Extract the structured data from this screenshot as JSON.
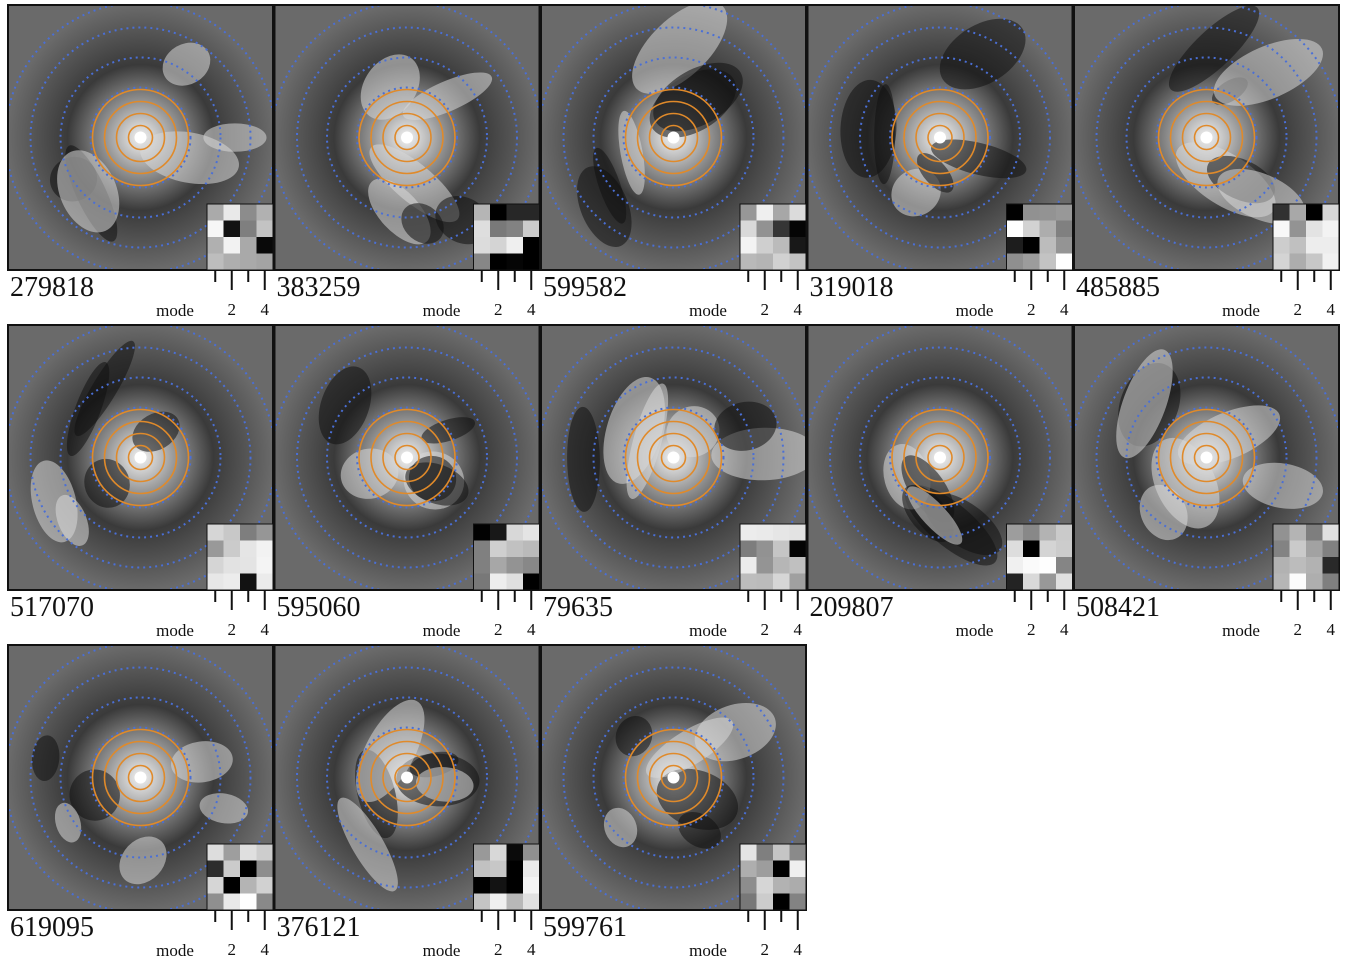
{
  "panels": [
    {
      "id": "279818",
      "axis_label": "mode",
      "tick_labels": [
        "2",
        "4"
      ]
    },
    {
      "id": "383259",
      "axis_label": "mode",
      "tick_labels": [
        "2",
        "4"
      ]
    },
    {
      "id": "599582",
      "axis_label": "mode",
      "tick_labels": [
        "2",
        "4"
      ]
    },
    {
      "id": "319018",
      "axis_label": "mode",
      "tick_labels": [
        "2",
        "4"
      ]
    },
    {
      "id": "485885",
      "axis_label": "mode",
      "tick_labels": [
        "2",
        "4"
      ]
    },
    {
      "id": "517070",
      "axis_label": "mode",
      "tick_labels": [
        "2",
        "4"
      ]
    },
    {
      "id": "595060",
      "axis_label": "mode",
      "tick_labels": [
        "2",
        "4"
      ]
    },
    {
      "id": "79635",
      "axis_label": "mode",
      "tick_labels": [
        "2",
        "4"
      ]
    },
    {
      "id": "209807",
      "axis_label": "mode",
      "tick_labels": [
        "2",
        "4"
      ]
    },
    {
      "id": "508421",
      "axis_label": "mode",
      "tick_labels": [
        "2",
        "4"
      ]
    },
    {
      "id": "619095",
      "axis_label": "mode",
      "tick_labels": [
        "2",
        "4"
      ]
    },
    {
      "id": "376121",
      "axis_label": "mode",
      "tick_labels": [
        "2",
        "4"
      ]
    },
    {
      "id": "599761",
      "axis_label": "mode",
      "tick_labels": [
        "2",
        "4"
      ]
    }
  ]
}
